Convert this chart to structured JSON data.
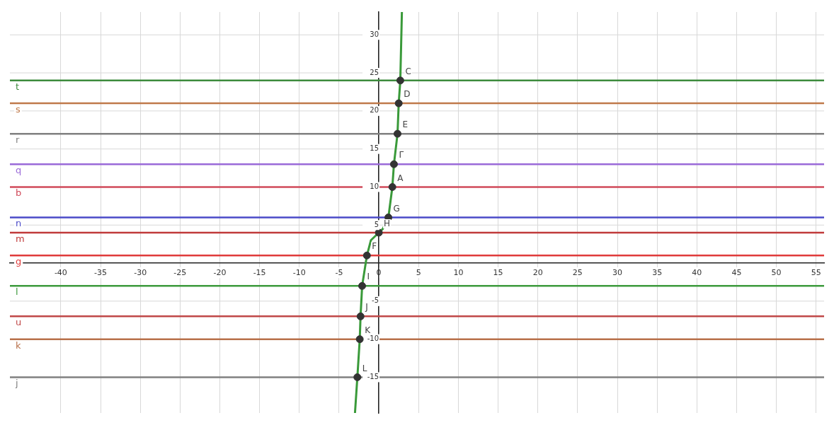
{
  "chart_data": {
    "type": "line",
    "xlim": [
      -46.4,
      56
    ],
    "ylim": [
      -19.7,
      33
    ],
    "xticks": [
      -40,
      -35,
      -30,
      -25,
      -20,
      -15,
      -10,
      -5,
      0,
      5,
      10,
      15,
      20,
      25,
      30,
      35,
      40,
      45,
      50,
      55
    ],
    "yticks": [
      -15,
      -10,
      -5,
      5,
      10,
      15,
      20,
      25,
      30
    ],
    "grid": true,
    "legend": false,
    "series": [
      {
        "color": "#3a9a3a",
        "marker": "none",
        "x": [
          -3.0,
          -2.7,
          -2.4,
          -2.3,
          -2.1,
          -1.5,
          -1.0,
          0,
          0.5,
          1.2,
          1.7,
          1.9,
          2.35,
          2.5,
          2.7,
          2.9
        ],
        "values": [
          -19.7,
          -15,
          -10,
          -7,
          -3,
          1,
          3,
          4,
          4.5,
          6,
          10,
          13,
          17,
          21,
          24,
          33
        ]
      },
      {
        "type": "scatter",
        "color": "#333333",
        "marker": "circle",
        "x": [
          2.7,
          2.5,
          2.35,
          1.9,
          1.7,
          1.2,
          0,
          -1.5,
          -2.1,
          -2.3,
          -2.4,
          -2.7
        ],
        "values": [
          24,
          21,
          17,
          13,
          10,
          6,
          4,
          1,
          -3,
          -7,
          -10,
          -15
        ]
      }
    ],
    "ref_lines": [
      {
        "axis": "y",
        "value": 24,
        "label": "t",
        "color": "#3d8b3d"
      },
      {
        "axis": "y",
        "value": 21,
        "label": "s",
        "color": "#c07a4a"
      },
      {
        "axis": "y",
        "value": 17,
        "label": "r",
        "color": "#808080"
      },
      {
        "axis": "y",
        "value": 13,
        "label": "q",
        "color": "#9a6ad8"
      },
      {
        "axis": "y",
        "value": 10,
        "label": "b",
        "color": "#d04a5a"
      },
      {
        "axis": "y",
        "value": 6,
        "label": "n",
        "color": "#4a4ac8"
      },
      {
        "axis": "y",
        "value": 4,
        "label": "m",
        "color": "#c03a3a"
      },
      {
        "axis": "y",
        "value": 1,
        "label": "g",
        "color": "#e03a3a"
      },
      {
        "axis": "y",
        "value": -3,
        "label": "l",
        "color": "#3d9a3d"
      },
      {
        "axis": "y",
        "value": -7,
        "label": "u",
        "color": "#c04848"
      },
      {
        "axis": "y",
        "value": -10,
        "label": "k",
        "color": "#b8704a"
      },
      {
        "axis": "y",
        "value": -15,
        "label": "j",
        "color": "#808080"
      }
    ],
    "annotations": [
      {
        "text": "C",
        "x": 2.7,
        "y": 24
      },
      {
        "text": "D",
        "x": 2.5,
        "y": 21
      },
      {
        "text": "E",
        "x": 2.35,
        "y": 17
      },
      {
        "text": "Γ",
        "x": 1.9,
        "y": 13
      },
      {
        "text": "A",
        "x": 1.7,
        "y": 10
      },
      {
        "text": "G",
        "x": 1.2,
        "y": 6
      },
      {
        "text": "H",
        "x": 0,
        "y": 4
      },
      {
        "text": "F",
        "x": -1.5,
        "y": 1
      },
      {
        "text": "I",
        "x": -2.1,
        "y": -3
      },
      {
        "text": "J",
        "x": -2.3,
        "y": -7
      },
      {
        "text": "K",
        "x": -2.4,
        "y": -10
      },
      {
        "text": "L",
        "x": -2.7,
        "y": -15
      }
    ]
  }
}
